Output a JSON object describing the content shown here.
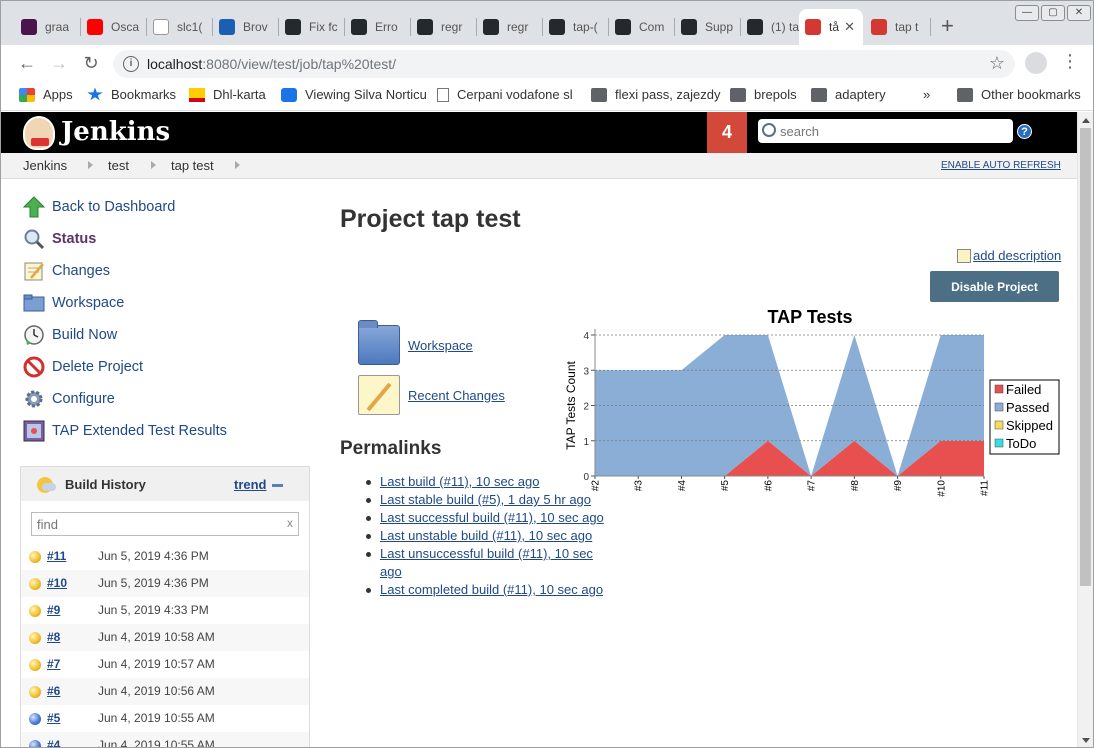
{
  "browser": {
    "tabs": [
      {
        "label": "graa",
        "favicon": "slack-icon",
        "color": "#4a154b"
      },
      {
        "label": "Osca",
        "favicon": "youtube-icon",
        "color": "#ff0000"
      },
      {
        "label": "slc1(",
        "favicon": "page-icon",
        "color": "#ffffff"
      },
      {
        "label": "Brov",
        "favicon": "shield-icon",
        "color": "#1a5fb4"
      },
      {
        "label": "Fix fc",
        "favicon": "github-icon",
        "color": "#24292e"
      },
      {
        "label": "Erro",
        "favicon": "github-icon",
        "color": "#24292e"
      },
      {
        "label": "regr",
        "favicon": "github-icon",
        "color": "#24292e"
      },
      {
        "label": "regr",
        "favicon": "github-icon",
        "color": "#24292e"
      },
      {
        "label": "tap-(",
        "favicon": "github-icon",
        "color": "#24292e"
      },
      {
        "label": "Com",
        "favicon": "github-icon",
        "color": "#24292e"
      },
      {
        "label": "Supp",
        "favicon": "github-icon",
        "color": "#24292e"
      },
      {
        "label": "(1) ta",
        "favicon": "github-icon",
        "color": "#24292e"
      },
      {
        "label": "tå",
        "favicon": "jenkins-icon",
        "color": "#d33833"
      },
      {
        "label": "tap t",
        "favicon": "jenkins-icon",
        "color": "#d33833"
      }
    ],
    "url_host": "localhost",
    "url_path": ":8080/view/test/job/tap%20test/",
    "bookmarks": [
      {
        "label": "Apps",
        "icon": "apps-grid-icon"
      },
      {
        "label": "Bookmarks",
        "icon": "star-icon"
      },
      {
        "label": "Dhl-karta",
        "icon": "dhl-icon"
      },
      {
        "label": "Viewing Silva Norticu",
        "icon": "app-icon"
      },
      {
        "label": "Cerpani vodafone sl",
        "icon": "page-icon"
      },
      {
        "label": "flexi pass, zajezdy",
        "icon": "folder-icon"
      },
      {
        "label": "brepols",
        "icon": "folder-icon"
      },
      {
        "label": "adaptery",
        "icon": "folder-icon"
      },
      {
        "label": "»",
        "icon": "chevron-icon"
      },
      {
        "label": "Other bookmarks",
        "icon": "folder-icon"
      }
    ]
  },
  "jenkins": {
    "logo_text": "Jenkins",
    "notification_count": "4",
    "search_placeholder": "search",
    "help_glyph": "?",
    "breadcrumb": [
      "Jenkins",
      "test",
      "tap test"
    ],
    "auto_refresh": "ENABLE AUTO REFRESH"
  },
  "sidebar": {
    "tasks": [
      {
        "label": "Back to Dashboard",
        "icon": "up-arrow-icon"
      },
      {
        "label": "Status",
        "icon": "magnifier-icon"
      },
      {
        "label": "Changes",
        "icon": "notepad-icon"
      },
      {
        "label": "Workspace",
        "icon": "folder-icon"
      },
      {
        "label": "Build Now",
        "icon": "clock-icon"
      },
      {
        "label": "Delete Project",
        "icon": "no-entry-icon"
      },
      {
        "label": "Configure",
        "icon": "gear-icon"
      },
      {
        "label": "TAP Extended Test Results",
        "icon": "tap-icon"
      }
    ]
  },
  "build_history": {
    "title": "Build History",
    "trend_label": "trend",
    "find_placeholder": "find",
    "clear_glyph": "x",
    "builds": [
      {
        "num": "#11",
        "date": "Jun 5, 2019 4:36 PM",
        "status": "unstable"
      },
      {
        "num": "#10",
        "date": "Jun 5, 2019 4:36 PM",
        "status": "unstable"
      },
      {
        "num": "#9",
        "date": "Jun 5, 2019 4:33 PM",
        "status": "unstable"
      },
      {
        "num": "#8",
        "date": "Jun 4, 2019 10:58 AM",
        "status": "unstable"
      },
      {
        "num": "#7",
        "date": "Jun 4, 2019 10:57 AM",
        "status": "unstable"
      },
      {
        "num": "#6",
        "date": "Jun 4, 2019 10:56 AM",
        "status": "unstable"
      },
      {
        "num": "#5",
        "date": "Jun 4, 2019 10:55 AM",
        "status": "success"
      },
      {
        "num": "#4",
        "date": "Jun 4, 2019 10:55 AM",
        "status": "success"
      }
    ]
  },
  "main": {
    "title": "Project tap test",
    "add_description": "add description",
    "disable_button": "Disable Project",
    "links": [
      {
        "label": "Workspace",
        "icon": "folder-icon"
      },
      {
        "label": "Recent Changes",
        "icon": "notepad-icon"
      }
    ],
    "permalinks_heading": "Permalinks",
    "permalinks": [
      "Last build (#11), 10 sec ago",
      "Last stable build (#5), 1 day 5 hr ago",
      "Last successful build (#11), 10 sec ago",
      "Last unstable build (#11), 10 sec ago",
      "Last unsuccessful build (#11), 10 sec ago",
      "Last completed build (#11), 10 sec ago"
    ]
  },
  "chart_data": {
    "type": "area",
    "title": "TAP Tests",
    "xlabel": "",
    "ylabel": "TAP Tests Count",
    "x": [
      "#2",
      "#3",
      "#4",
      "#5",
      "#6",
      "#7",
      "#8",
      "#9",
      "#10",
      "#11"
    ],
    "ylim": [
      0,
      4
    ],
    "yticks": [
      0,
      1,
      2,
      3,
      4
    ],
    "stacked": true,
    "grid": true,
    "legend_position": "right",
    "series": [
      {
        "name": "Failed",
        "color": "#e85050",
        "values": [
          0,
          0,
          0,
          0,
          1,
          0,
          1,
          0,
          1,
          1
        ]
      },
      {
        "name": "Passed",
        "color": "#8aaed6",
        "values": [
          3,
          3,
          3,
          4,
          3,
          0,
          3,
          0,
          3,
          3
        ]
      },
      {
        "name": "Skipped",
        "color": "#f5dc5c",
        "values": [
          0,
          0,
          0,
          0,
          0,
          0,
          0,
          0,
          0,
          0
        ]
      },
      {
        "name": "ToDo",
        "color": "#33e0e0",
        "values": [
          0,
          0,
          0,
          0,
          0,
          0,
          0,
          0,
          0,
          0
        ]
      }
    ]
  }
}
